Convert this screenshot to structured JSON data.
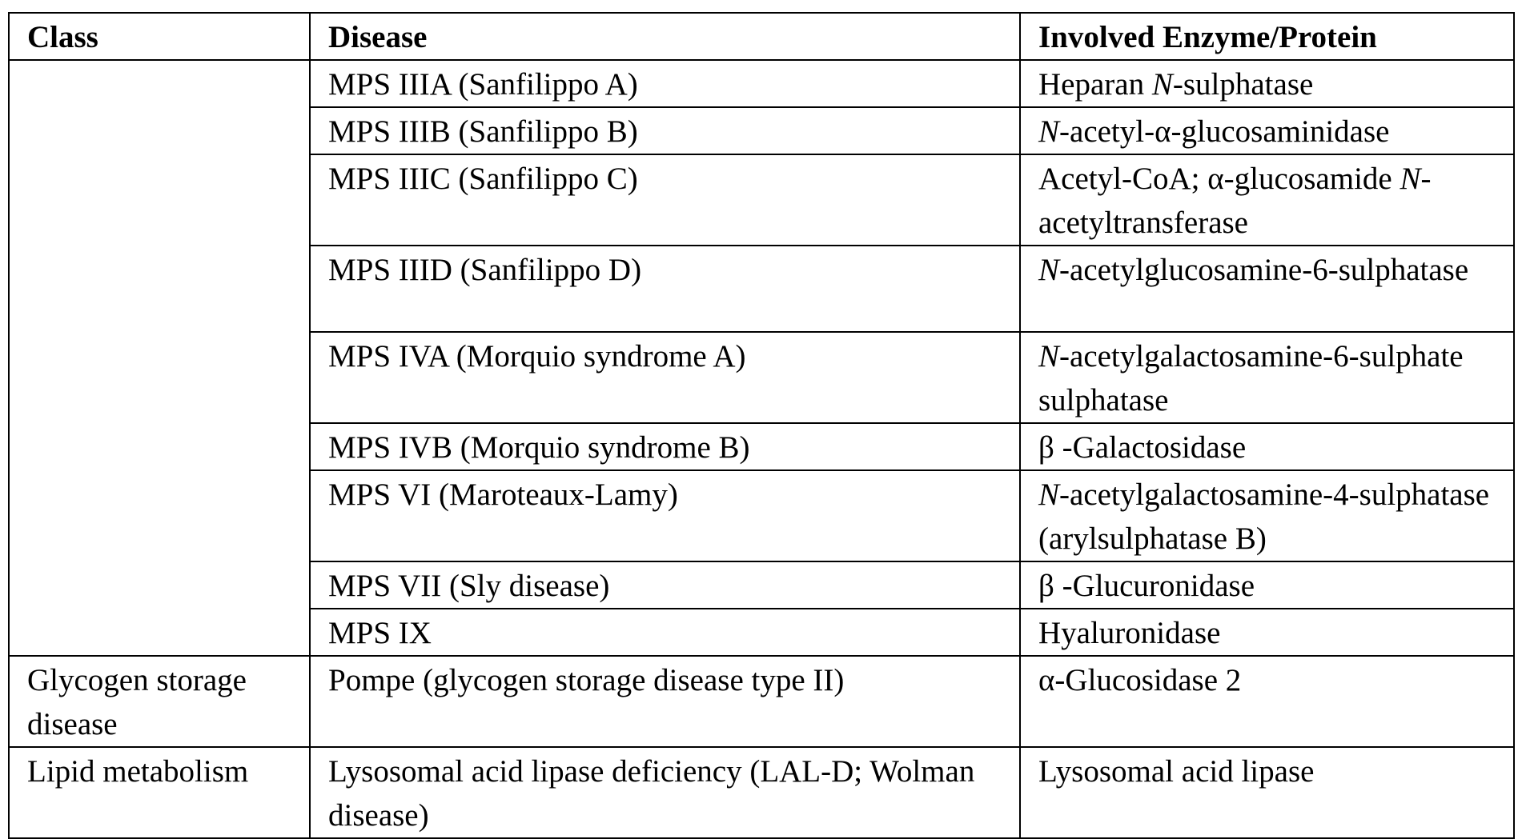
{
  "headers": {
    "class": "Class",
    "disease": "Disease",
    "enzyme": "Involved Enzyme/Protein"
  },
  "rows": [
    {
      "class": "",
      "disease": "MPS IIIA (Sanfilippo A)",
      "enzyme": [
        {
          "t": "Heparan "
        },
        {
          "t": "N",
          "i": true
        },
        {
          "t": "-sulphatase"
        }
      ]
    },
    {
      "class": "",
      "disease": "MPS IIIB (Sanfilippo B)",
      "enzyme": [
        {
          "t": "N",
          "i": true
        },
        {
          "t": "-acetyl-α-glucosaminidase"
        }
      ]
    },
    {
      "class": "",
      "disease": "MPS IIIC (Sanfilippo C)",
      "enzyme": [
        {
          "t": "Acetyl-CoA; α-glucosamide "
        },
        {
          "t": "N",
          "i": true
        },
        {
          "t": "-acetyltransferase"
        }
      ]
    },
    {
      "class": "",
      "disease": "MPS IIID (Sanfilippo D)",
      "enzyme": [
        {
          "t": "N",
          "i": true
        },
        {
          "t": "-acetylglucosamine-6-sulphatase"
        }
      ]
    },
    {
      "class": "",
      "disease": "MPS IVA (Morquio syndrome A)",
      "enzyme": [
        {
          "t": "N",
          "i": true
        },
        {
          "t": "-acetylgalactosamine-6-sulphate sulphatase"
        }
      ]
    },
    {
      "class": "",
      "disease": "MPS IVB (Morquio syndrome B)",
      "enzyme": [
        {
          "t": "β -Galactosidase"
        }
      ]
    },
    {
      "class": "",
      "disease": "MPS VI (Maroteaux-Lamy)",
      "enzyme": [
        {
          "t": "N",
          "i": true
        },
        {
          "t": "-acetylgalactosamine-4-sulphatase (arylsulphatase B)"
        }
      ]
    },
    {
      "class": "",
      "disease": "MPS VII (Sly disease)",
      "enzyme": [
        {
          "t": "β -Glucuronidase"
        }
      ]
    },
    {
      "class": "",
      "disease": "MPS IX",
      "enzyme": [
        {
          "t": "Hyaluronidase"
        }
      ]
    },
    {
      "class": "Glycogen storage disease",
      "disease": "Pompe (glycogen storage disease type II)",
      "enzyme": [
        {
          "t": "α-Glucosidase 2"
        }
      ]
    },
    {
      "class": "Lipid metabolism",
      "disease": "Lysosomal acid lipase deficiency (LAL-D; Wolman disease)",
      "enzyme": [
        {
          "t": "Lysosomal acid lipase"
        }
      ]
    }
  ]
}
